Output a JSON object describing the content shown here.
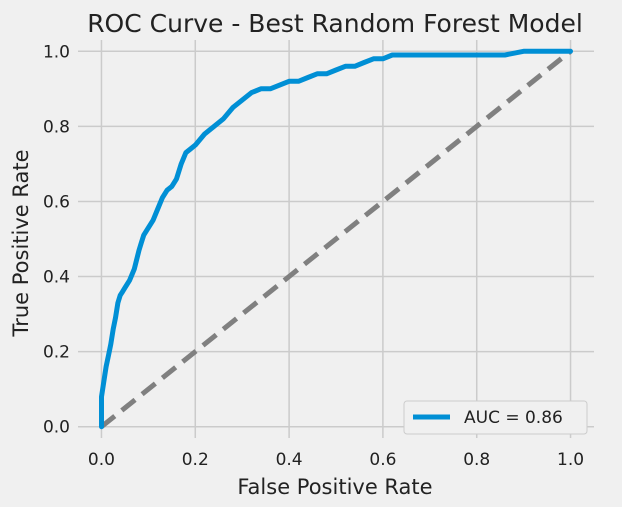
{
  "chart_data": {
    "type": "line",
    "title": "ROC Curve - Best Random Forest Model",
    "xlabel": "False Positive Rate",
    "ylabel": "True Positive Rate",
    "xlim": [
      -0.05,
      1.05
    ],
    "ylim": [
      -0.03,
      1.03
    ],
    "xticks": [
      "0.0",
      "0.2",
      "0.4",
      "0.6",
      "0.8",
      "1.0"
    ],
    "yticks": [
      "0.0",
      "0.2",
      "0.4",
      "0.6",
      "0.8",
      "1.0"
    ],
    "grid": true,
    "legend_position": "lower-right",
    "legend_label": "AUC = 0.86",
    "series": [
      {
        "name": "AUC = 0.86",
        "style": "solid",
        "color": "#008fd5",
        "x": [
          0.0,
          0.0,
          0.005,
          0.01,
          0.015,
          0.02,
          0.025,
          0.03,
          0.035,
          0.04,
          0.045,
          0.05,
          0.06,
          0.07,
          0.08,
          0.085,
          0.09,
          0.1,
          0.11,
          0.12,
          0.13,
          0.14,
          0.15,
          0.16,
          0.17,
          0.18,
          0.19,
          0.2,
          0.22,
          0.24,
          0.26,
          0.28,
          0.3,
          0.32,
          0.34,
          0.36,
          0.38,
          0.4,
          0.42,
          0.44,
          0.46,
          0.48,
          0.5,
          0.52,
          0.54,
          0.56,
          0.58,
          0.6,
          0.62,
          0.64,
          0.7,
          0.8,
          0.86,
          0.9,
          0.94,
          1.0
        ],
        "y": [
          0.0,
          0.08,
          0.12,
          0.16,
          0.19,
          0.22,
          0.26,
          0.29,
          0.33,
          0.35,
          0.36,
          0.37,
          0.39,
          0.42,
          0.47,
          0.49,
          0.51,
          0.53,
          0.55,
          0.58,
          0.61,
          0.63,
          0.64,
          0.66,
          0.7,
          0.73,
          0.74,
          0.75,
          0.78,
          0.8,
          0.82,
          0.85,
          0.87,
          0.89,
          0.9,
          0.9,
          0.91,
          0.92,
          0.92,
          0.93,
          0.94,
          0.94,
          0.95,
          0.96,
          0.96,
          0.97,
          0.98,
          0.98,
          0.99,
          0.99,
          0.99,
          0.99,
          0.99,
          1.0,
          1.0,
          1.0
        ]
      },
      {
        "name": "",
        "style": "dashed",
        "color": "#808080",
        "x": [
          0.0,
          1.0
        ],
        "y": [
          0.0,
          1.0
        ]
      }
    ]
  }
}
